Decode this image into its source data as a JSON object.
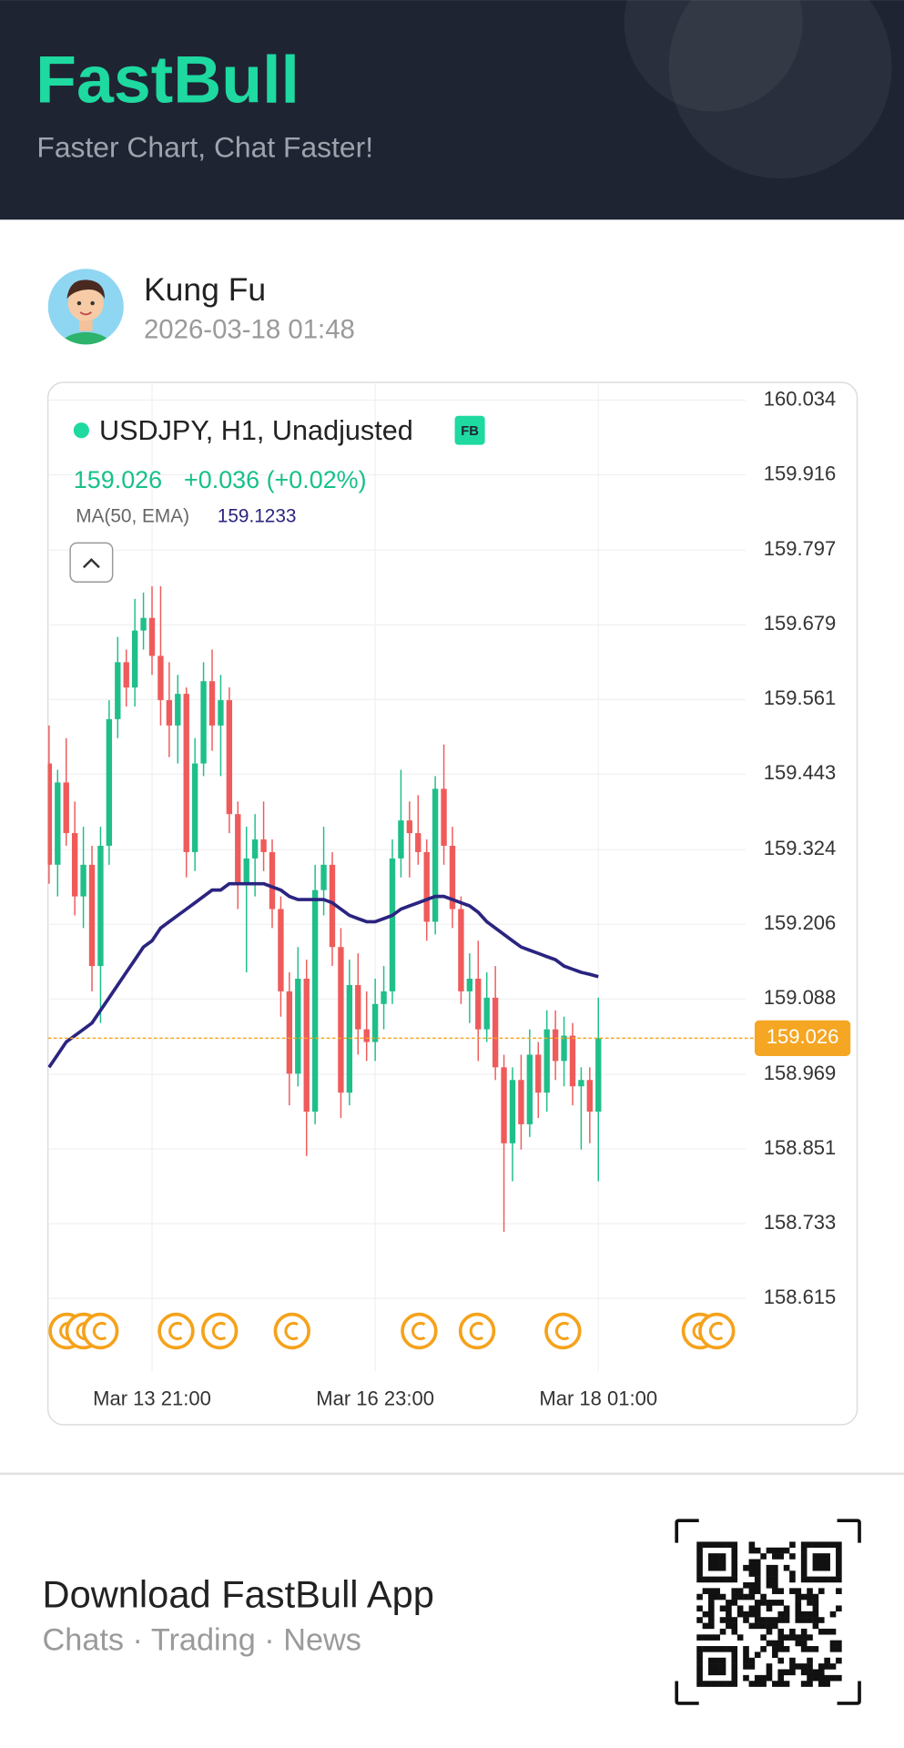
{
  "header": {
    "logo": "FastBull",
    "tagline": "Faster Chart, Chat Faster!"
  },
  "post": {
    "user": "Kung Fu",
    "time": "2026-03-18 01:48"
  },
  "chart_data": {
    "type": "candlestick",
    "badge": "FB",
    "change": "+0.036 (+0.02%)",
    "categories": [
      null,
      null,
      null,
      null,
      null,
      null,
      null,
      null,
      null,
      null,
      null,
      null,
      "Mar 13 21:00",
      null,
      null,
      null,
      null,
      null,
      null,
      null,
      null,
      null,
      null,
      null,
      null,
      null,
      null,
      null,
      null,
      null,
      null,
      null,
      null,
      null,
      null,
      null,
      null,
      null,
      "Mar 16 23:00",
      null,
      null,
      null,
      null,
      null,
      null,
      null,
      null,
      null,
      null,
      null,
      null,
      null,
      null,
      null,
      null,
      null,
      null,
      null,
      null,
      null,
      null,
      null,
      null,
      null,
      "Mar 18 01:00"
    ],
    "series": [
      {
        "name": "USDJPY, H1, Unadjusted",
        "up_color": "#1fbf8a",
        "down_color": "#ef5b5b",
        "open": [
          159.46,
          159.3,
          159.43,
          159.35,
          159.25,
          159.3,
          159.14,
          159.33,
          159.53,
          159.62,
          159.58,
          159.67,
          159.69,
          159.63,
          159.56,
          159.52,
          159.57,
          159.32,
          159.46,
          159.59,
          159.52,
          159.56,
          159.38,
          159.27,
          159.31,
          159.34,
          159.32,
          159.23,
          159.1,
          158.97,
          159.12,
          158.91,
          159.26,
          159.3,
          159.17,
          158.94,
          159.11,
          159.04,
          159.02,
          159.08,
          159.1,
          159.31,
          159.37,
          159.35,
          159.32,
          159.21,
          159.42,
          159.33,
          159.23,
          159.1,
          159.12,
          159.04,
          159.09,
          158.98,
          158.86,
          158.96,
          158.89,
          159.0,
          158.94,
          159.04,
          158.99,
          159.03,
          158.95,
          158.96,
          158.91
        ],
        "high": [
          159.52,
          159.45,
          159.5,
          159.4,
          159.36,
          159.33,
          159.36,
          159.56,
          159.66,
          159.64,
          159.72,
          159.73,
          159.74,
          159.74,
          159.62,
          159.6,
          159.58,
          159.5,
          159.62,
          159.64,
          159.6,
          159.58,
          159.4,
          159.36,
          159.38,
          159.4,
          159.34,
          159.25,
          159.13,
          159.17,
          159.15,
          159.3,
          159.36,
          159.32,
          159.2,
          159.15,
          159.16,
          159.1,
          159.12,
          159.14,
          159.34,
          159.45,
          159.4,
          159.41,
          159.34,
          159.44,
          159.49,
          159.36,
          159.25,
          159.16,
          159.18,
          159.13,
          159.14,
          159.0,
          158.98,
          159.0,
          159.04,
          159.02,
          159.07,
          159.07,
          159.06,
          159.05,
          158.98,
          158.98,
          159.09
        ],
        "low": [
          159.27,
          159.25,
          159.33,
          159.22,
          159.2,
          159.1,
          159.05,
          159.3,
          159.5,
          159.55,
          159.55,
          159.64,
          159.6,
          159.52,
          159.47,
          159.46,
          159.28,
          159.29,
          159.44,
          159.48,
          159.44,
          159.35,
          159.23,
          159.13,
          159.25,
          159.29,
          159.2,
          159.06,
          158.92,
          158.95,
          158.84,
          158.89,
          159.22,
          159.14,
          158.9,
          158.92,
          159.0,
          158.99,
          158.99,
          159.04,
          159.08,
          159.28,
          159.28,
          159.3,
          159.18,
          159.19,
          159.3,
          159.2,
          159.08,
          159.05,
          158.99,
          159.02,
          158.96,
          158.72,
          158.8,
          158.85,
          158.87,
          158.9,
          158.91,
          158.96,
          158.95,
          158.92,
          158.85,
          158.86,
          158.8
        ],
        "close": [
          159.3,
          159.43,
          159.35,
          159.25,
          159.3,
          159.14,
          159.33,
          159.53,
          159.62,
          159.58,
          159.67,
          159.69,
          159.63,
          159.56,
          159.52,
          159.57,
          159.32,
          159.46,
          159.59,
          159.52,
          159.56,
          159.38,
          159.27,
          159.31,
          159.34,
          159.32,
          159.23,
          159.1,
          158.97,
          159.12,
          158.91,
          159.26,
          159.3,
          159.17,
          158.94,
          159.11,
          159.04,
          159.02,
          159.08,
          159.1,
          159.31,
          159.37,
          159.35,
          159.32,
          159.21,
          159.42,
          159.33,
          159.23,
          159.1,
          159.12,
          159.04,
          159.09,
          158.98,
          158.86,
          158.96,
          158.89,
          159.0,
          158.94,
          159.04,
          158.99,
          159.03,
          158.95,
          158.96,
          158.91,
          159.026
        ]
      },
      {
        "name": "MA(50, EMA)",
        "color": "#2b2480",
        "values": [
          158.98,
          159.0,
          159.02,
          159.03,
          159.04,
          159.05,
          159.07,
          159.09,
          159.11,
          159.13,
          159.15,
          159.17,
          159.18,
          159.2,
          159.21,
          159.22,
          159.23,
          159.24,
          159.25,
          159.26,
          159.26,
          159.27,
          159.27,
          159.27,
          159.27,
          159.27,
          159.265,
          159.26,
          159.25,
          159.245,
          159.245,
          159.245,
          159.245,
          159.24,
          159.23,
          159.22,
          159.215,
          159.21,
          159.21,
          159.215,
          159.22,
          159.23,
          159.235,
          159.24,
          159.245,
          159.25,
          159.25,
          159.245,
          159.24,
          159.235,
          159.225,
          159.21,
          159.2,
          159.19,
          159.18,
          159.17,
          159.165,
          159.16,
          159.155,
          159.15,
          159.14,
          159.135,
          159.13,
          159.127,
          159.1233
        ]
      }
    ],
    "ylim": [
      158.5,
      160.062
    ],
    "yticks": [
      160.034,
      159.916,
      159.797,
      159.679,
      159.561,
      159.443,
      159.324,
      159.206,
      159.088,
      158.969,
      158.851,
      158.733,
      158.615
    ],
    "grid": true,
    "last_price_color": "#f5a623"
  },
  "footer": {
    "title": "Download FastBull App",
    "subtitle": "Chats · Trading · News"
  }
}
